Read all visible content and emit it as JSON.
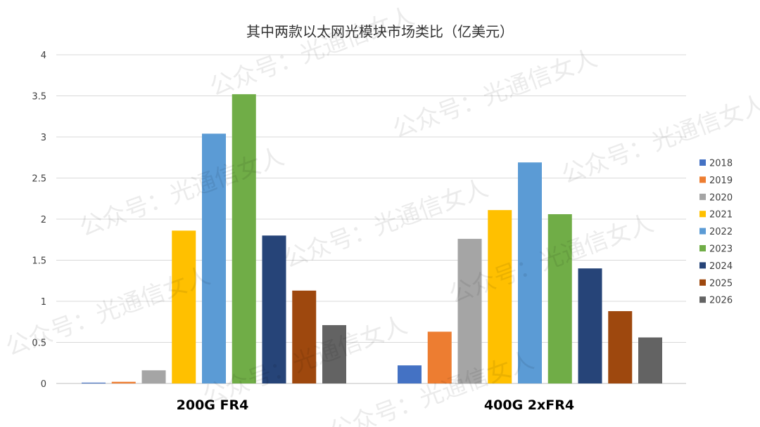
{
  "watermark_text": "公众号：光通信女人",
  "chart_data": {
    "type": "bar",
    "title": "其中两款以太网光模块市场类比（亿美元）",
    "xlabel": "",
    "ylabel": "",
    "ylim": [
      0,
      4
    ],
    "yticks": [
      0,
      0.5,
      1,
      1.5,
      2,
      2.5,
      3,
      3.5,
      4
    ],
    "ytick_labels": [
      "0",
      "0.5",
      "1",
      "1.5",
      "2",
      "2.5",
      "3",
      "3.5",
      "4"
    ],
    "grid": true,
    "legend_position": "right",
    "categories": [
      "200G FR4",
      "400G 2xFR4"
    ],
    "series": [
      {
        "name": "2018",
        "color": "#4472C4",
        "values": [
          0.01,
          0.22
        ]
      },
      {
        "name": "2019",
        "color": "#ED7D31",
        "values": [
          0.02,
          0.63
        ]
      },
      {
        "name": "2020",
        "color": "#A5A5A5",
        "values": [
          0.16,
          1.76
        ]
      },
      {
        "name": "2021",
        "color": "#FFC000",
        "values": [
          1.86,
          2.11
        ]
      },
      {
        "name": "2022",
        "color": "#5B9BD5",
        "values": [
          3.04,
          2.69
        ]
      },
      {
        "name": "2023",
        "color": "#70AD47",
        "values": [
          3.52,
          2.06
        ]
      },
      {
        "name": "2024",
        "color": "#264478",
        "values": [
          1.8,
          1.4
        ]
      },
      {
        "name": "2025",
        "color": "#9E480E",
        "values": [
          1.13,
          0.88
        ]
      },
      {
        "name": "2026",
        "color": "#636363",
        "values": [
          0.71,
          0.56
        ]
      }
    ]
  }
}
